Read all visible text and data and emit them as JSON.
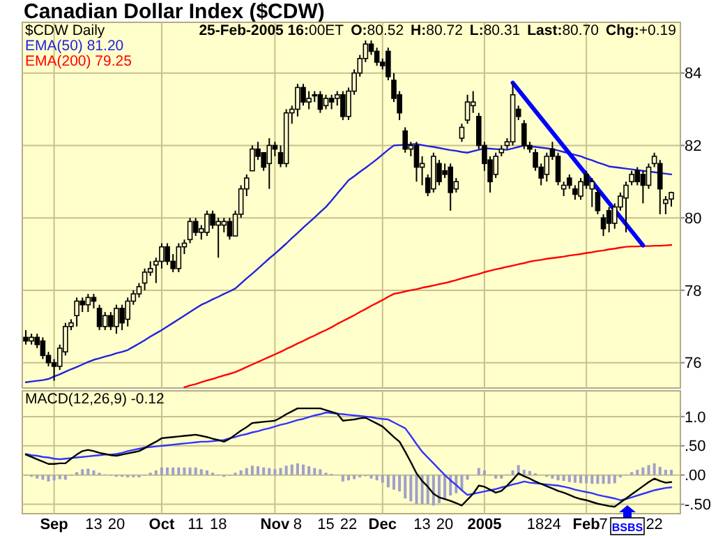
{
  "chart_data": [
    {
      "type": "candlestick",
      "title": "Canadian Dollar Index ($CDW)",
      "annotations": [
        "$CDW Daily",
        "25-Feb-2005 16:00ET",
        "O:80.52",
        "H:80.72",
        "L:80.31",
        "Last:80.70",
        "Chg:+0.19"
      ],
      "ohlc": [
        [
          76.7,
          76.9,
          76.5,
          76.6
        ],
        [
          76.6,
          76.8,
          76.5,
          76.7
        ],
        [
          76.7,
          76.8,
          76.4,
          76.5
        ],
        [
          76.6,
          76.7,
          76.1,
          76.2
        ],
        [
          76.2,
          76.3,
          75.9,
          76.0
        ],
        [
          76.0,
          76.1,
          75.5,
          75.9
        ],
        [
          75.9,
          76.5,
          75.8,
          76.4
        ],
        [
          76.3,
          77.1,
          76.2,
          77.0
        ],
        [
          77.0,
          77.2,
          76.9,
          77.1
        ],
        [
          77.3,
          77.8,
          77.0,
          77.7
        ],
        [
          77.7,
          77.8,
          77.4,
          77.6
        ],
        [
          77.6,
          77.9,
          77.4,
          77.8
        ],
        [
          77.8,
          77.9,
          77.5,
          77.7
        ],
        [
          77.5,
          77.6,
          76.9,
          77.0
        ],
        [
          77.0,
          77.4,
          76.9,
          77.3
        ],
        [
          77.3,
          77.4,
          76.9,
          77.0
        ],
        [
          77.0,
          77.6,
          76.8,
          77.5
        ],
        [
          77.5,
          77.6,
          76.9,
          77.1
        ],
        [
          77.2,
          77.8,
          77.0,
          77.7
        ],
        [
          77.7,
          78.0,
          77.6,
          77.9
        ],
        [
          77.9,
          78.2,
          77.8,
          78.1
        ],
        [
          78.2,
          78.6,
          78.0,
          78.5
        ],
        [
          78.5,
          78.8,
          78.4,
          78.6
        ],
        [
          78.7,
          78.9,
          78.2,
          78.8
        ],
        [
          78.8,
          79.3,
          78.6,
          79.2
        ],
        [
          79.2,
          79.3,
          78.7,
          78.8
        ],
        [
          78.8,
          79.0,
          78.5,
          78.6
        ],
        [
          78.6,
          79.3,
          78.5,
          79.2
        ],
        [
          79.2,
          79.4,
          79.0,
          79.3
        ],
        [
          79.4,
          80.0,
          79.3,
          79.9
        ],
        [
          79.9,
          80.0,
          79.5,
          79.6
        ],
        [
          79.6,
          79.8,
          79.4,
          79.7
        ],
        [
          79.6,
          80.2,
          79.5,
          80.1
        ],
        [
          80.1,
          80.2,
          79.7,
          79.8
        ],
        [
          79.8,
          80.0,
          78.9,
          79.9
        ],
        [
          79.8,
          80.0,
          79.6,
          79.9
        ],
        [
          79.9,
          80.0,
          79.4,
          79.5
        ],
        [
          79.5,
          80.2,
          79.5,
          80.1
        ],
        [
          80.1,
          80.9,
          80.0,
          80.8
        ],
        [
          80.8,
          81.2,
          80.6,
          81.1
        ],
        [
          81.3,
          82.0,
          81.3,
          81.9
        ],
        [
          81.9,
          82.1,
          81.6,
          81.7
        ],
        [
          81.8,
          81.8,
          81.3,
          81.4
        ],
        [
          81.5,
          82.2,
          80.8,
          82.0
        ],
        [
          82.0,
          82.1,
          81.7,
          81.9
        ],
        [
          81.8,
          82.0,
          81.4,
          81.5
        ],
        [
          81.5,
          83.0,
          81.4,
          82.9
        ],
        [
          82.9,
          83.1,
          82.6,
          83.0
        ],
        [
          83.0,
          83.7,
          82.8,
          83.6
        ],
        [
          83.6,
          83.7,
          83.1,
          83.2
        ],
        [
          83.2,
          83.5,
          83.0,
          83.3
        ],
        [
          83.4,
          83.5,
          83.2,
          83.4
        ],
        [
          83.4,
          83.5,
          82.9,
          83.0
        ],
        [
          83.1,
          83.4,
          83.0,
          83.3
        ],
        [
          83.3,
          83.4,
          83.0,
          83.2
        ],
        [
          83.3,
          83.5,
          83.1,
          83.4
        ],
        [
          83.4,
          83.5,
          82.7,
          82.8
        ],
        [
          82.8,
          83.6,
          82.7,
          83.5
        ],
        [
          83.5,
          84.1,
          83.4,
          84.0
        ],
        [
          84.0,
          84.5,
          83.9,
          84.4
        ],
        [
          84.4,
          84.9,
          84.3,
          84.8
        ],
        [
          84.8,
          84.9,
          84.5,
          84.6
        ],
        [
          84.6,
          84.7,
          84.2,
          84.3
        ],
        [
          84.3,
          84.4,
          84.1,
          84.2
        ],
        [
          84.6,
          84.7,
          83.8,
          83.9
        ],
        [
          83.8,
          84.0,
          83.2,
          83.3
        ],
        [
          83.4,
          83.5,
          82.7,
          82.9
        ],
        [
          82.4,
          82.5,
          81.8,
          81.9
        ],
        [
          81.9,
          82.1,
          81.7,
          82.0
        ],
        [
          82.0,
          82.1,
          81.0,
          81.4
        ],
        [
          81.4,
          81.7,
          80.9,
          81.5
        ],
        [
          81.1,
          81.2,
          80.6,
          80.7
        ],
        [
          80.8,
          81.8,
          80.7,
          81.7
        ],
        [
          81.5,
          81.6,
          80.9,
          81.0
        ],
        [
          81.3,
          81.5,
          81.1,
          81.2
        ],
        [
          81.4,
          81.5,
          80.2,
          80.7
        ],
        [
          80.8,
          81.1,
          80.7,
          81.0
        ],
        [
          82.2,
          82.6,
          82.1,
          82.5
        ],
        [
          82.7,
          83.4,
          82.6,
          83.2
        ],
        [
          83.1,
          83.5,
          82.9,
          83.2
        ],
        [
          82.8,
          82.9,
          81.9,
          82.0
        ],
        [
          82.0,
          82.1,
          81.3,
          81.5
        ],
        [
          81.6,
          81.7,
          80.7,
          81.0
        ],
        [
          81.2,
          81.8,
          81.1,
          81.7
        ],
        [
          81.8,
          82.0,
          81.7,
          81.9
        ],
        [
          82.0,
          82.2,
          81.9,
          82.1
        ],
        [
          82.1,
          83.7,
          82.0,
          83.4
        ],
        [
          83.0,
          83.1,
          82.7,
          82.8
        ],
        [
          82.6,
          82.7,
          81.9,
          82.0
        ],
        [
          82.0,
          82.1,
          81.8,
          81.9
        ],
        [
          81.8,
          81.9,
          81.3,
          81.4
        ],
        [
          81.4,
          81.5,
          80.9,
          81.1
        ],
        [
          81.2,
          81.8,
          81.0,
          81.7
        ],
        [
          81.9,
          82.1,
          81.6,
          81.7
        ],
        [
          81.7,
          81.8,
          80.9,
          81.0
        ],
        [
          80.8,
          81.0,
          80.6,
          80.9
        ],
        [
          81.1,
          81.2,
          80.8,
          80.9
        ],
        [
          80.8,
          80.9,
          80.5,
          80.65
        ],
        [
          80.6,
          81.1,
          80.5,
          81.0
        ],
        [
          81.2,
          81.3,
          80.8,
          80.9
        ],
        [
          80.8,
          81.1,
          80.3,
          81.0
        ],
        [
          80.7,
          80.8,
          80.1,
          80.2
        ],
        [
          80.0,
          80.1,
          79.5,
          79.7
        ],
        [
          80.2,
          80.3,
          79.6,
          79.85
        ],
        [
          79.85,
          80.4,
          79.7,
          80.3
        ],
        [
          80.3,
          80.7,
          80.2,
          80.6
        ],
        [
          80.55,
          81.0,
          79.6,
          80.9
        ],
        [
          81.0,
          81.3,
          80.9,
          81.2
        ],
        [
          81.3,
          81.4,
          80.9,
          81.0
        ],
        [
          81.2,
          81.3,
          80.4,
          80.9
        ],
        [
          80.9,
          81.5,
          80.8,
          81.4
        ],
        [
          81.5,
          81.8,
          81.4,
          81.7
        ],
        [
          81.5,
          81.6,
          80.1,
          80.8
        ],
        [
          80.4,
          80.6,
          80.1,
          80.5
        ],
        [
          80.52,
          80.72,
          80.31,
          80.7
        ]
      ],
      "series": [
        {
          "type": "line",
          "name": "EMA(50) 81.20",
          "color": "#2222dd",
          "values": [
            75.46,
            75.48,
            75.5,
            75.52,
            75.55,
            75.62,
            75.68,
            75.75,
            75.82,
            75.88,
            75.95,
            76.02,
            76.08,
            76.12,
            76.17,
            76.21,
            76.26,
            76.3,
            76.35,
            76.44,
            76.53,
            76.62,
            76.72,
            76.81,
            76.9,
            77.0,
            77.1,
            77.2,
            77.3,
            77.4,
            77.5,
            77.6,
            77.67,
            77.75,
            77.82,
            77.9,
            77.97,
            78.05,
            78.19,
            78.33,
            78.46,
            78.6,
            78.74,
            78.88,
            79.01,
            79.15,
            79.29,
            79.44,
            79.58,
            79.73,
            79.87,
            80.01,
            80.16,
            80.3,
            80.48,
            80.67,
            80.85,
            81.04,
            81.15,
            81.27,
            81.38,
            81.5,
            81.62,
            81.75,
            81.88,
            82.0,
            82.01,
            82.02,
            82.03,
            82.04,
            82.01,
            81.98,
            81.96,
            81.93,
            81.9,
            81.87,
            81.85,
            81.82,
            81.8,
            81.84,
            81.88,
            81.92,
            81.91,
            81.9,
            81.89,
            81.88,
            81.92,
            81.96,
            82.0,
            81.98,
            81.96,
            81.94,
            81.92,
            81.9,
            81.86,
            81.82,
            81.78,
            81.74,
            81.7,
            81.64,
            81.59,
            81.53,
            81.48,
            81.42,
            81.4,
            81.38,
            81.36,
            81.34,
            81.32,
            81.3,
            81.28,
            81.26,
            81.24,
            81.22,
            81.2
          ]
        },
        {
          "type": "line",
          "name": "EMA(200) 79.25",
          "color": "#ff0000",
          "values": [
            null,
            null,
            null,
            null,
            null,
            null,
            null,
            null,
            null,
            null,
            null,
            null,
            null,
            null,
            null,
            null,
            null,
            null,
            null,
            null,
            null,
            null,
            null,
            null,
            null,
            null,
            null,
            null,
            75.32,
            75.37,
            75.41,
            75.46,
            75.51,
            75.55,
            75.6,
            75.65,
            75.69,
            75.74,
            75.81,
            75.88,
            75.95,
            76.02,
            76.09,
            76.16,
            76.23,
            76.3,
            76.38,
            76.45,
            76.53,
            76.6,
            76.68,
            76.75,
            76.83,
            76.9,
            76.98,
            77.07,
            77.15,
            77.23,
            77.31,
            77.4,
            77.48,
            77.57,
            77.65,
            77.73,
            77.82,
            77.9,
            77.93,
            77.97,
            78.0,
            78.03,
            78.07,
            78.1,
            78.13,
            78.17,
            78.2,
            78.24,
            78.28,
            78.33,
            78.37,
            78.41,
            78.45,
            78.5,
            78.54,
            78.58,
            78.61,
            78.65,
            78.68,
            78.72,
            78.75,
            78.79,
            78.82,
            78.84,
            78.87,
            78.89,
            78.91,
            78.93,
            78.96,
            78.98,
            79.0,
            79.03,
            79.05,
            79.08,
            79.1,
            79.13,
            79.15,
            79.18,
            79.2,
            79.21,
            79.21,
            79.22,
            79.22,
            79.23,
            79.23,
            79.24,
            79.25
          ]
        },
        {
          "type": "line",
          "color": "#0000ff",
          "values": [
            null,
            null,
            null,
            null,
            null,
            null,
            null,
            null,
            null,
            null,
            null,
            null,
            null,
            null,
            null,
            null,
            null,
            null,
            null,
            null,
            null,
            null,
            null,
            null,
            null,
            null,
            null,
            null,
            null,
            null,
            null,
            null,
            null,
            null,
            null,
            null,
            null,
            null,
            null,
            null,
            null,
            null,
            null,
            null,
            null,
            null,
            null,
            null,
            null,
            null,
            null,
            null,
            null,
            null,
            null,
            null,
            null,
            null,
            null,
            null,
            null,
            null,
            null,
            null,
            null,
            null,
            null,
            null,
            null,
            null,
            null,
            null,
            null,
            null,
            null,
            null,
            null,
            null,
            null,
            null,
            null,
            null,
            null,
            null,
            null,
            null,
            83.73,
            null,
            null,
            null,
            null,
            null,
            null,
            null,
            null,
            null,
            null,
            null,
            null,
            null,
            null,
            null,
            null,
            null,
            null,
            null,
            null,
            null,
            null,
            79.24,
            null,
            null,
            null,
            null,
            null
          ]
        }
      ],
      "ylim": [
        75.3,
        85.4
      ],
      "yticks": [
        76,
        78,
        80,
        82,
        84
      ],
      "grid": true,
      "legend": "top left",
      "tick_labels": "y"
    },
    {
      "type": "line",
      "annotations": [
        "BSBS"
      ],
      "categories": [
        null,
        null,
        null,
        null,
        null,
        "Sep",
        null,
        null,
        null,
        null,
        null,
        null,
        "13",
        null,
        null,
        null,
        "20",
        null,
        null,
        null,
        null,
        null,
        null,
        null,
        "Oct",
        null,
        null,
        null,
        null,
        null,
        "11",
        null,
        null,
        null,
        "18",
        null,
        null,
        null,
        null,
        null,
        null,
        null,
        null,
        null,
        "Nov",
        null,
        null,
        null,
        "8",
        null,
        null,
        null,
        null,
        "15",
        null,
        null,
        null,
        "22",
        null,
        null,
        null,
        null,
        null,
        "Dec",
        null,
        null,
        null,
        null,
        null,
        null,
        "13",
        null,
        null,
        null,
        "20",
        null,
        null,
        null,
        null,
        null,
        null,
        "2005",
        null,
        null,
        null,
        null,
        null,
        null,
        null,
        null,
        "18",
        null,
        null,
        "24",
        null,
        null,
        null,
        null,
        null,
        "Feb",
        null,
        null,
        "7",
        null,
        null,
        null,
        null,
        null,
        null,
        null,
        null,
        "22",
        null,
        null,
        null
      ],
      "series": [
        {
          "type": "bar",
          "color": "#a0a0c8",
          "values": [
            -0.01,
            -0.03,
            -0.06,
            -0.08,
            -0.11,
            -0.09,
            -0.07,
            -0.08,
            -0.01,
            0.05,
            0.1,
            0.11,
            0.08,
            0.04,
            0.01,
            -0.01,
            -0.03,
            -0.03,
            -0.04,
            -0.04,
            -0.04,
            -0.01,
            0.04,
            0.08,
            0.13,
            0.13,
            0.13,
            0.13,
            0.13,
            0.13,
            0.13,
            0.1,
            0.08,
            0.04,
            0.01,
            -0.03,
            -0.01,
            0.04,
            0.08,
            0.12,
            0.16,
            0.15,
            0.13,
            0.12,
            0.1,
            0.12,
            0.16,
            0.18,
            0.2,
            0.18,
            0.15,
            0.12,
            0.1,
            0.04,
            0.02,
            0,
            -0.11,
            -0.09,
            -0.07,
            -0.04,
            -0.02,
            -0.06,
            -0.09,
            -0.13,
            -0.21,
            -0.25,
            -0.28,
            -0.4,
            -0.45,
            -0.5,
            -0.5,
            -0.5,
            -0.52,
            -0.48,
            -0.41,
            -0.35,
            -0.31,
            -0.26,
            -0.08,
            0,
            0.12,
            0.08,
            0.01,
            -0.06,
            -0.06,
            0.01,
            0.08,
            0.17,
            0.09,
            0.07,
            0.03,
            0,
            -0.03,
            -0.06,
            -0.09,
            -0.1,
            -0.12,
            -0.13,
            -0.14,
            -0.14,
            -0.15,
            -0.15,
            -0.15,
            -0.15,
            -0.14,
            -0.04,
            0.01,
            0.05,
            0.09,
            0.13,
            0.17,
            0.2,
            0.14,
            0.09,
            0.09
          ]
        },
        {
          "type": "line",
          "color": "#3333ff",
          "values": [
            0.36,
            0.34,
            0.33,
            0.31,
            0.3,
            0.28,
            0.27,
            0.28,
            0.29,
            0.3,
            0.31,
            0.32,
            0.33,
            0.34,
            0.35,
            0.35,
            0.36,
            0.38,
            0.41,
            0.43,
            0.45,
            0.47,
            0.48,
            0.49,
            0.5,
            0.51,
            0.52,
            0.53,
            0.54,
            0.55,
            0.56,
            0.57,
            0.57,
            0.58,
            0.59,
            0.6,
            0.63,
            0.65,
            0.68,
            0.7,
            0.73,
            0.75,
            0.78,
            0.8,
            0.83,
            0.86,
            0.88,
            0.91,
            0.94,
            0.96,
            0.99,
            1.02,
            1.04,
            1.07,
            1.06,
            1.05,
            1.04,
            1.03,
            1.02,
            1.01,
            1.0,
            0.99,
            0.97,
            0.96,
            0.95,
            0.9,
            0.85,
            0.8,
            0.67,
            0.53,
            0.4,
            0.3,
            0.2,
            0.1,
            0,
            -0.09,
            -0.17,
            -0.26,
            -0.34,
            -0.32,
            -0.3,
            -0.28,
            -0.26,
            -0.24,
            -0.21,
            -0.19,
            -0.16,
            -0.14,
            -0.11,
            -0.13,
            -0.14,
            -0.15,
            -0.16,
            -0.17,
            -0.18,
            -0.2,
            -0.22,
            -0.25,
            -0.27,
            -0.29,
            -0.31,
            -0.34,
            -0.36,
            -0.38,
            -0.4,
            -0.43,
            -0.41,
            -0.38,
            -0.35,
            -0.32,
            -0.29,
            -0.26,
            -0.24,
            -0.22,
            -0.21
          ]
        },
        {
          "type": "line",
          "name": "MACD(12,26,9) -0.12",
          "color": "#000000",
          "values": [
            0.35,
            0.31,
            0.27,
            0.23,
            0.19,
            0.19,
            0.2,
            0.2,
            0.28,
            0.35,
            0.41,
            0.43,
            0.41,
            0.38,
            0.36,
            0.34,
            0.33,
            0.35,
            0.37,
            0.39,
            0.41,
            0.46,
            0.52,
            0.57,
            0.63,
            0.64,
            0.65,
            0.66,
            0.67,
            0.68,
            0.69,
            0.67,
            0.65,
            0.62,
            0.6,
            0.57,
            0.62,
            0.69,
            0.76,
            0.82,
            0.89,
            0.9,
            0.91,
            0.92,
            0.93,
            0.98,
            1.04,
            1.09,
            1.14,
            1.14,
            1.14,
            1.14,
            1.14,
            1.11,
            1.08,
            1.05,
            0.93,
            0.94,
            0.95,
            0.97,
            0.98,
            0.93,
            0.88,
            0.83,
            0.74,
            0.65,
            0.57,
            0.4,
            0.22,
            0.03,
            -0.1,
            -0.2,
            -0.32,
            -0.38,
            -0.41,
            -0.44,
            -0.48,
            -0.52,
            -0.42,
            -0.32,
            -0.18,
            -0.2,
            -0.25,
            -0.3,
            -0.27,
            -0.18,
            -0.08,
            0.03,
            -0.02,
            -0.06,
            -0.11,
            -0.15,
            -0.19,
            -0.23,
            -0.27,
            -0.3,
            -0.34,
            -0.38,
            -0.41,
            -0.43,
            -0.46,
            -0.49,
            -0.51,
            -0.53,
            -0.54,
            -0.47,
            -0.4,
            -0.33,
            -0.26,
            -0.19,
            -0.12,
            -0.06,
            -0.1,
            -0.13,
            -0.12
          ]
        }
      ],
      "ylim": [
        -0.66,
        1.44
      ],
      "yticks": [
        {
          "value": 1,
          "label": "1.0"
        },
        {
          "value": 0.5,
          "label": ".50"
        },
        {
          "value": 0,
          "label": ".00"
        },
        {
          "value": -0.5,
          "label": "-.50"
        }
      ],
      "grid": true,
      "legend": "top left"
    }
  ]
}
